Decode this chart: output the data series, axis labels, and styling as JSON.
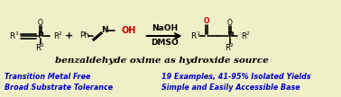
{
  "bg_color": "#f0f0c8",
  "title_text": "benzaldehyde oxime as hydroxide source",
  "title_color": "#000000",
  "title_fontsize": 7.5,
  "arrow_color": "#000000",
  "reagent_line1": "NaOH",
  "reagent_line2": "DMSO",
  "reagent_fontsize": 6.5,
  "bullet1_left": "Transition Metal Free",
  "bullet2_left": "Broad Substrate Tolerance",
  "bullet1_right": "19 Examples, 41-95% Isolated Yields",
  "bullet2_right": "Simple and Easily Accessible Base",
  "bullet_color": "#0000cc",
  "bullet_fontsize": 5.8,
  "struct_color": "#000000",
  "oh_color": "#cc0000",
  "o_color": "#cc0000",
  "plus_color": "#000000"
}
